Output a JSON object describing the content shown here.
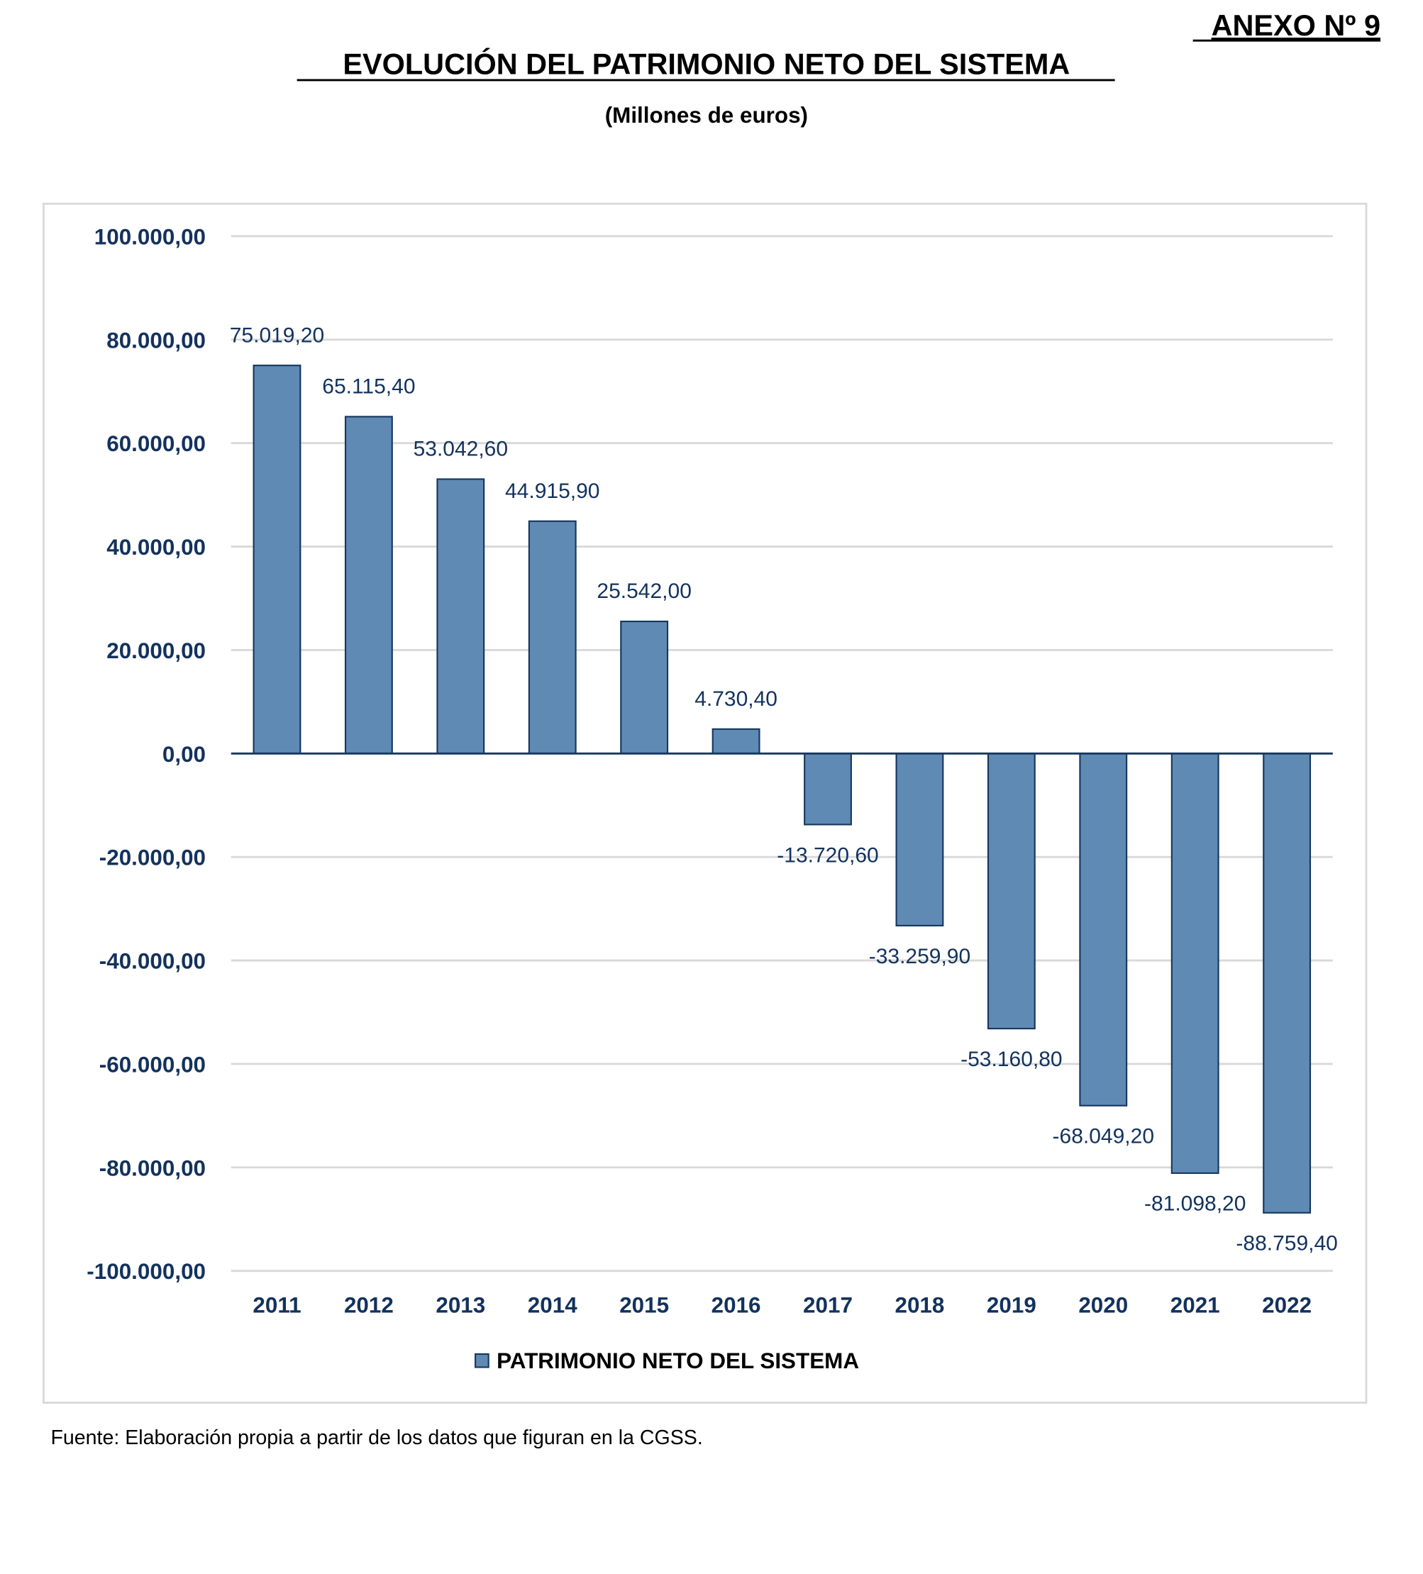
{
  "annex_label": "ANEXO Nº 9",
  "title": "EVOLUCIÓN DEL PATRIMONIO NETO DEL SISTEMA",
  "subtitle": "(Millones de euros)",
  "footer": "Fuente: Elaboración propia a partir de los datos que figuran en la CGSS.",
  "chart_data": {
    "type": "bar",
    "title": "EVOLUCIÓN DEL PATRIMONIO NETO DEL SISTEMA",
    "subtitle": "(Millones de euros)",
    "categories": [
      "2011",
      "2012",
      "2013",
      "2014",
      "2015",
      "2016",
      "2017",
      "2018",
      "2019",
      "2020",
      "2021",
      "2022"
    ],
    "series": [
      {
        "name": "PATRIMONIO NETO DEL SISTEMA",
        "values": [
          75019.2,
          65115.4,
          53042.6,
          44915.9,
          25542.0,
          4730.4,
          -13720.6,
          -33259.9,
          -53160.8,
          -68049.2,
          -81098.2,
          -88759.4
        ],
        "labels": [
          "75.019,20",
          "65.115,40",
          "53.042,60",
          "44.915,90",
          "25.542,00",
          "4.730,40",
          "-13.720,60",
          "-33.259,90",
          "-53.160,80",
          "-68.049,20",
          "-81.098,20",
          "-88.759,40"
        ]
      }
    ],
    "ylim": [
      -100000,
      100000
    ],
    "yticks": [
      100000,
      80000,
      60000,
      40000,
      20000,
      0,
      -20000,
      -40000,
      -60000,
      -80000,
      -100000
    ],
    "ytick_labels": [
      "100.000,00",
      "80.000,00",
      "60.000,00",
      "40.000,00",
      "20.000,00",
      "0,00",
      "-20.000,00",
      "-40.000,00",
      "-60.000,00",
      "-80.000,00",
      "-100.000,00"
    ],
    "grid": true,
    "legend": "bottom",
    "colors": {
      "bar_fill": "#5f8ab4",
      "bar_stroke": "#17375f",
      "text": "#13325d",
      "grid": "#d9d9d9"
    }
  }
}
